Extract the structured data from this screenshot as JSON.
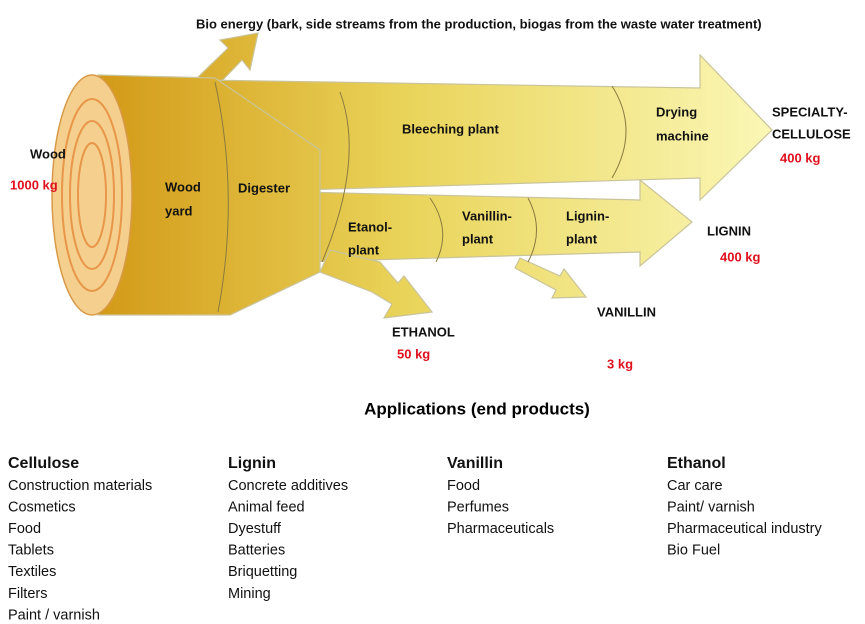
{
  "diagram": {
    "bio_energy": "Bio energy (bark, side streams from the production, biogas from the waste water treatment)",
    "input": {
      "label": "Wood",
      "amount": "1000 kg"
    },
    "stages": [
      {
        "lines": [
          "Wood",
          "yard"
        ]
      },
      {
        "lines": [
          "Digester"
        ]
      },
      {
        "lines": [
          "Bleeching plant"
        ]
      },
      {
        "lines": [
          "Drying",
          "machine"
        ]
      },
      {
        "lines": [
          "Etanol-",
          "plant"
        ]
      },
      {
        "lines": [
          "Vanillin-",
          "plant"
        ]
      },
      {
        "lines": [
          "Lignin-",
          "plant"
        ]
      }
    ],
    "outputs": [
      {
        "lines": [
          "SPECIALTY-",
          "CELLULOSE"
        ],
        "amount": "400 kg"
      },
      {
        "lines": [
          "LIGNIN"
        ],
        "amount": "400 kg"
      },
      {
        "lines": [
          "ETHANOL"
        ],
        "amount": "50 kg"
      },
      {
        "lines": [
          "VANILLIN"
        ],
        "amount": "3 kg"
      }
    ]
  },
  "applications": {
    "title": "Applications (end products)",
    "columns": [
      {
        "heading": "Cellulose",
        "items": [
          "Construction materials",
          "Cosmetics",
          "Food",
          "Tablets",
          "Textiles",
          "Filters",
          "Paint / varnish"
        ]
      },
      {
        "heading": "Lignin",
        "items": [
          "Concrete additives",
          "Animal feed",
          "Dyestuff",
          "Batteries",
          "Briquetting",
          "Mining"
        ]
      },
      {
        "heading": "Vanillin",
        "items": [
          "Food",
          "Perfumes",
          "Pharmaceuticals"
        ]
      },
      {
        "heading": "Ethanol",
        "items": [
          "Car care",
          "Paint/ varnish",
          "Pharmaceutical industry",
          "Bio Fuel"
        ]
      }
    ]
  }
}
